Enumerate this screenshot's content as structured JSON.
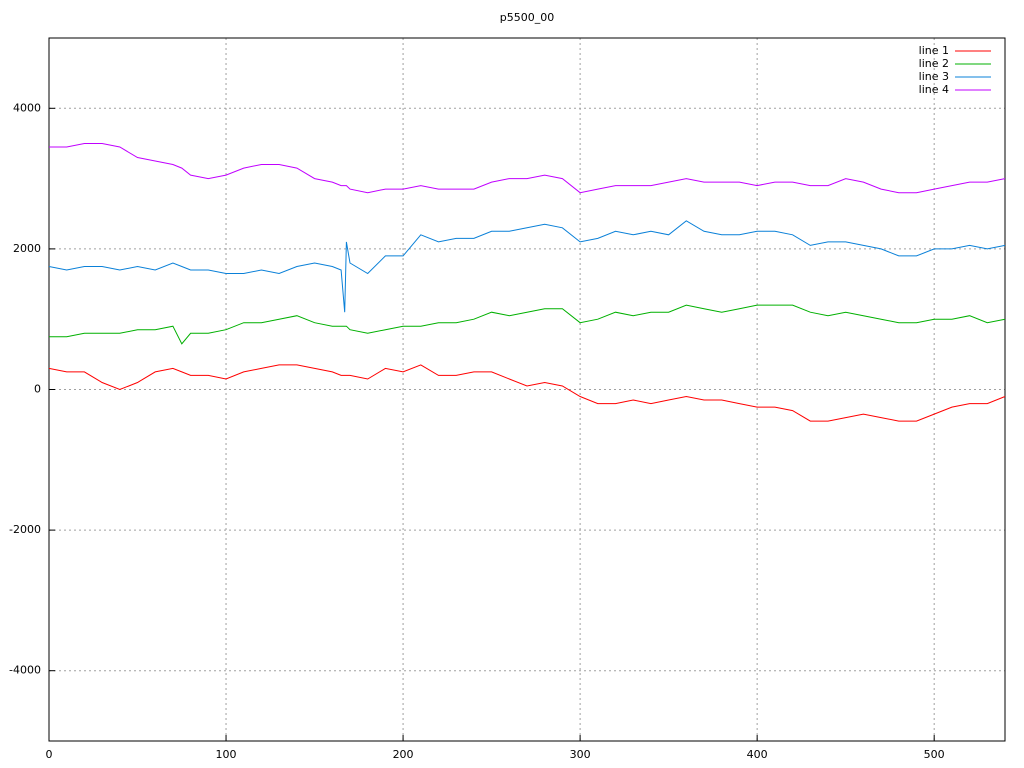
{
  "chart_data": {
    "type": "line",
    "title": "p5500_00",
    "x": [
      0,
      10,
      20,
      30,
      40,
      50,
      60,
      70,
      75,
      80,
      90,
      100,
      110,
      120,
      130,
      140,
      150,
      160,
      165,
      167,
      168,
      170,
      180,
      190,
      200,
      210,
      220,
      230,
      240,
      250,
      260,
      270,
      280,
      290,
      300,
      310,
      320,
      330,
      340,
      350,
      360,
      370,
      380,
      390,
      400,
      410,
      420,
      430,
      440,
      450,
      460,
      470,
      480,
      490,
      500,
      510,
      520,
      530,
      540
    ],
    "series": [
      {
        "name": "line 1",
        "color": "#ff0000",
        "values": [
          300,
          250,
          250,
          100,
          0,
          100,
          250,
          300,
          250,
          200,
          200,
          150,
          250,
          300,
          350,
          350,
          300,
          250,
          200,
          200,
          200,
          200,
          150,
          300,
          250,
          350,
          200,
          200,
          250,
          250,
          150,
          50,
          100,
          50,
          -100,
          -200,
          -200,
          -150,
          -200,
          -150,
          -100,
          -150,
          -150,
          -200,
          -250,
          -250,
          -300,
          -450,
          -450,
          -400,
          -350,
          -400,
          -450,
          -450,
          -350,
          -250,
          -200,
          -200,
          -100
        ]
      },
      {
        "name": "line 2",
        "color": "#00b000",
        "values": [
          750,
          750,
          800,
          800,
          800,
          850,
          850,
          900,
          650,
          800,
          800,
          850,
          950,
          950,
          1000,
          1050,
          950,
          900,
          900,
          900,
          900,
          850,
          800,
          850,
          900,
          900,
          950,
          950,
          1000,
          1100,
          1050,
          1100,
          1150,
          1150,
          950,
          1000,
          1100,
          1050,
          1100,
          1100,
          1200,
          1150,
          1100,
          1150,
          1200,
          1200,
          1200,
          1100,
          1050,
          1100,
          1050,
          1000,
          950,
          950,
          1000,
          1000,
          1050,
          950,
          1000
        ]
      },
      {
        "name": "line 3",
        "color": "#0a80d8",
        "values": [
          1750,
          1700,
          1750,
          1750,
          1700,
          1750,
          1700,
          1800,
          1750,
          1700,
          1700,
          1650,
          1650,
          1700,
          1650,
          1750,
          1800,
          1750,
          1700,
          1100,
          2100,
          1800,
          1650,
          1900,
          1900,
          2200,
          2100,
          2150,
          2150,
          2250,
          2250,
          2300,
          2350,
          2300,
          2100,
          2150,
          2250,
          2200,
          2250,
          2200,
          2400,
          2250,
          2200,
          2200,
          2250,
          2250,
          2200,
          2050,
          2100,
          2100,
          2050,
          2000,
          1900,
          1900,
          2000,
          2000,
          2050,
          2000,
          2050
        ]
      },
      {
        "name": "line 4",
        "color": "#c000ff",
        "values": [
          3450,
          3450,
          3500,
          3500,
          3450,
          3300,
          3250,
          3200,
          3150,
          3050,
          3000,
          3050,
          3150,
          3200,
          3200,
          3150,
          3000,
          2950,
          2900,
          2900,
          2900,
          2850,
          2800,
          2850,
          2850,
          2900,
          2850,
          2850,
          2850,
          2950,
          3000,
          3000,
          3050,
          3000,
          2800,
          2850,
          2900,
          2900,
          2900,
          2950,
          3000,
          2950,
          2950,
          2950,
          2900,
          2950,
          2950,
          2900,
          2900,
          3000,
          2950,
          2850,
          2800,
          2800,
          2850,
          2900,
          2950,
          2950,
          3000
        ]
      }
    ],
    "xlim": [
      0,
      540
    ],
    "xticks": [
      0,
      100,
      200,
      300,
      400,
      500
    ],
    "ylim": [
      -5000,
      5000
    ],
    "yticks": [
      -4000,
      -2000,
      0,
      2000,
      4000
    ],
    "grid": true,
    "legend": "top-right"
  }
}
